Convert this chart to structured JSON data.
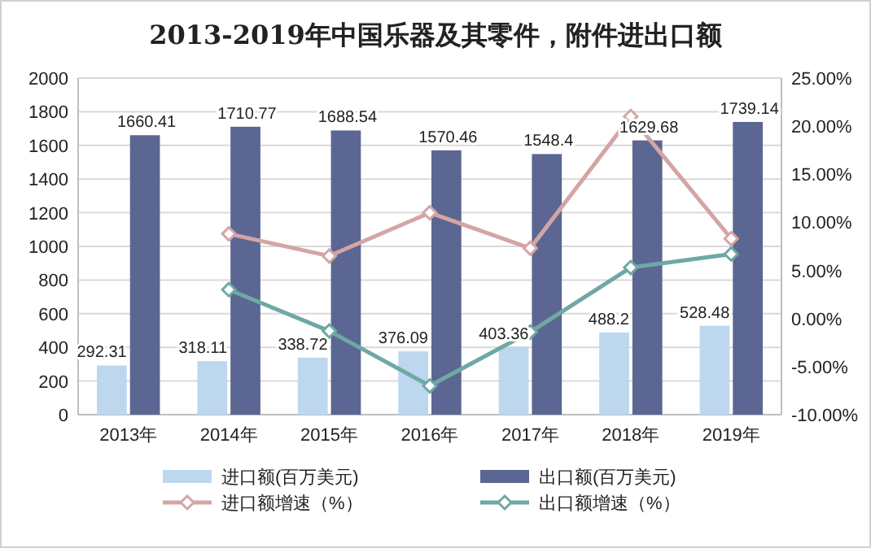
{
  "chart_data": {
    "type": "bar",
    "title": "2013-2019年中国乐器及其零件，附件进出口额",
    "categories": [
      "2013年",
      "2014年",
      "2015年",
      "2016年",
      "2017年",
      "2018年",
      "2019年"
    ],
    "series": [
      {
        "name": "进口额(百万美元)",
        "color": "#bdd7ee",
        "data_labels": true,
        "values": [
          292.31,
          318.11,
          338.72,
          376.09,
          403.36,
          488.2,
          528.48
        ]
      },
      {
        "name": "出口额(百万美元)",
        "color": "#5b6792",
        "data_labels": true,
        "values": [
          1660.41,
          1710.77,
          1688.54,
          1570.46,
          1548.4,
          1629.68,
          1739.14
        ]
      },
      {
        "name": "进口额增速（%）",
        "type": "line",
        "axis": "y2",
        "marker": "diamond",
        "color": "#d4a5a5",
        "values": [
          null,
          8.8,
          6.5,
          11.0,
          7.3,
          21.0,
          8.3
        ]
      },
      {
        "name": "出口额增速（%）",
        "type": "line",
        "axis": "y2",
        "marker": "diamond",
        "color": "#6fa8a4",
        "values": [
          null,
          3.0,
          -1.3,
          -7.0,
          -1.4,
          5.3,
          6.7
        ]
      }
    ],
    "ylim": [
      0,
      2000
    ],
    "yticks": [
      0,
      200,
      400,
      600,
      800,
      1000,
      1200,
      1400,
      1600,
      1800,
      2000
    ],
    "y2lim": [
      -10,
      25
    ],
    "y2ticks": [
      {
        "value": -10,
        "label": "-10.00%"
      },
      {
        "value": -5,
        "label": "-5.00%"
      },
      {
        "value": 0,
        "label": "0.00%"
      },
      {
        "value": 5,
        "label": "5.00%"
      },
      {
        "value": 10,
        "label": "10.00%"
      },
      {
        "value": 15,
        "label": "15.00%"
      },
      {
        "value": 20,
        "label": "20.00%"
      },
      {
        "value": 25,
        "label": "25.00%"
      }
    ],
    "grid": "y",
    "legend": "bottom"
  }
}
